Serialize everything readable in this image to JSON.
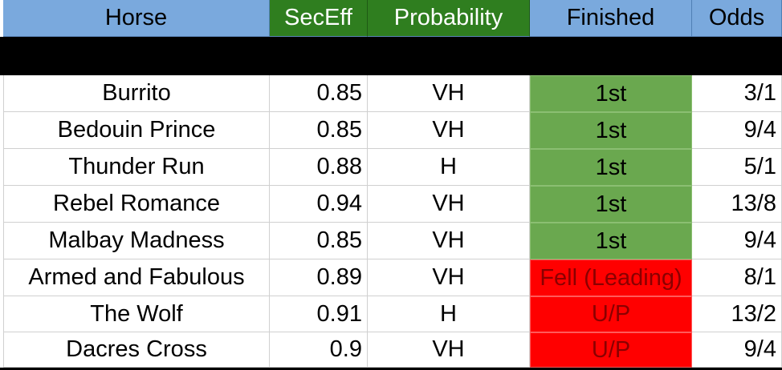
{
  "headers": {
    "horse": "Horse",
    "seceff": "SecEff",
    "probability": "Probability",
    "finished": "Finished",
    "odds": "Odds"
  },
  "colors": {
    "header_blue": "#7aa9dd",
    "header_green": "#2f7e1f",
    "win_green": "#6aa84f",
    "loss_red": "#ff0000"
  },
  "rows": [
    {
      "horse": "Burrito",
      "seceff": "0.85",
      "probability": "VH",
      "finished": "1st",
      "odds": "3/1",
      "status": "win"
    },
    {
      "horse": "Bedouin Prince",
      "seceff": "0.85",
      "probability": "VH",
      "finished": "1st",
      "odds": "9/4",
      "status": "win"
    },
    {
      "horse": "Thunder Run",
      "seceff": "0.88",
      "probability": "H",
      "finished": "1st",
      "odds": "5/1",
      "status": "win"
    },
    {
      "horse": "Rebel Romance",
      "seceff": "0.94",
      "probability": "VH",
      "finished": "1st",
      "odds": "13/8",
      "status": "win"
    },
    {
      "horse": "Malbay Madness",
      "seceff": "0.85",
      "probability": "VH",
      "finished": "1st",
      "odds": "9/4",
      "status": "win"
    },
    {
      "horse": "Armed and Fabulous",
      "seceff": "0.89",
      "probability": "VH",
      "finished": "Fell (Leading)",
      "odds": "8/1",
      "status": "loss"
    },
    {
      "horse": "The Wolf",
      "seceff": "0.91",
      "probability": "H",
      "finished": "U/P",
      "odds": "13/2",
      "status": "loss"
    },
    {
      "horse": "Dacres Cross",
      "seceff": "0.9",
      "probability": "VH",
      "finished": "U/P",
      "odds": "9/4",
      "status": "loss"
    }
  ]
}
